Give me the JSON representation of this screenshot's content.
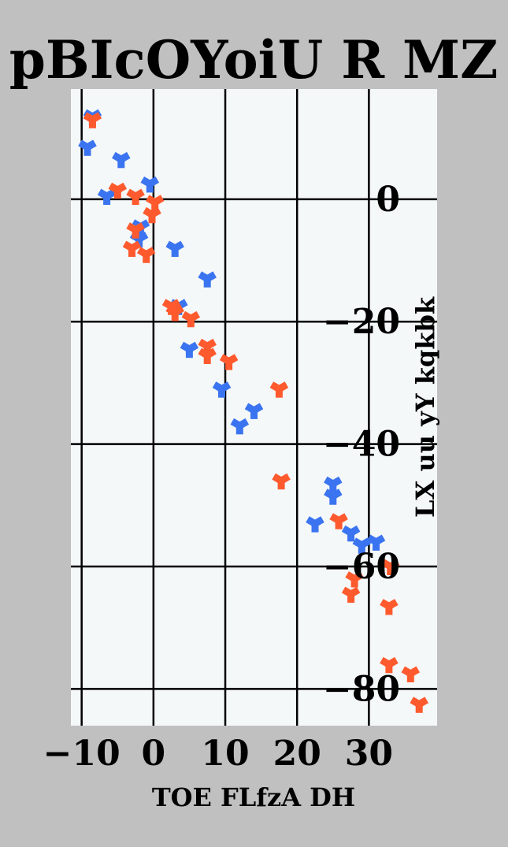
{
  "chart_data": {
    "type": "scatter",
    "title": "pBIcOYoiU R MZ",
    "xlabel": "TOE FLfzA DH",
    "ylabel": "LX uu yY kqkbk",
    "xlim": [
      -11.5,
      39.5
    ],
    "ylim": [
      -86,
      18
    ],
    "x_ticks": [
      -10,
      0,
      10,
      20,
      30
    ],
    "x_tick_labels": [
      "−10",
      "0",
      "10",
      "20",
      "30"
    ],
    "y_ticks": [
      0,
      -20,
      -40,
      -60,
      -80
    ],
    "y_tick_labels": [
      "0",
      "−20",
      "−40",
      "−60",
      "−80"
    ],
    "y_axis_side": "right",
    "grid": true,
    "legend": "none",
    "marker": "tri-down",
    "background": "#f4f8f9",
    "series": [
      {
        "color": "#3b74f0",
        "points": [
          [
            -8.5,
            13.5
          ],
          [
            -9.2,
            8.5
          ],
          [
            -4.5,
            6.5
          ],
          [
            -6.5,
            0.5
          ],
          [
            -0.5,
            2.5
          ],
          [
            -1.8,
            -4.5
          ],
          [
            -2.0,
            -6.5
          ],
          [
            3.0,
            -8.0
          ],
          [
            7.5,
            -13.0
          ],
          [
            3.5,
            -17.5
          ],
          [
            5.0,
            -24.5
          ],
          [
            9.5,
            -31.0
          ],
          [
            14.0,
            -34.5
          ],
          [
            12.0,
            -37.0
          ],
          [
            25.0,
            -46.5
          ],
          [
            25.0,
            -48.5
          ],
          [
            22.5,
            -53.0
          ],
          [
            27.5,
            -54.5
          ],
          [
            29.0,
            -56.5
          ],
          [
            31.0,
            -56.0
          ]
        ]
      },
      {
        "color": "#ff5a2e",
        "points": [
          [
            -8.5,
            13.0
          ],
          [
            -5.0,
            1.5
          ],
          [
            -2.5,
            0.5
          ],
          [
            0.2,
            -0.5
          ],
          [
            -0.2,
            -2.5
          ],
          [
            -2.5,
            -5.0
          ],
          [
            -3.0,
            -8.0
          ],
          [
            -1.0,
            -9.0
          ],
          [
            2.5,
            -17.5
          ],
          [
            3.0,
            -18.5
          ],
          [
            5.2,
            -19.5
          ],
          [
            7.5,
            -24.0
          ],
          [
            7.5,
            -25.5
          ],
          [
            10.5,
            -26.5
          ],
          [
            17.5,
            -31.0
          ],
          [
            17.8,
            -46.0
          ],
          [
            25.8,
            -52.5
          ],
          [
            28.0,
            -62.0
          ],
          [
            27.5,
            -64.5
          ],
          [
            33.0,
            -60.0
          ],
          [
            32.8,
            -66.5
          ],
          [
            32.8,
            -76.0
          ],
          [
            35.8,
            -77.5
          ],
          [
            37.0,
            -82.5
          ]
        ]
      }
    ]
  }
}
